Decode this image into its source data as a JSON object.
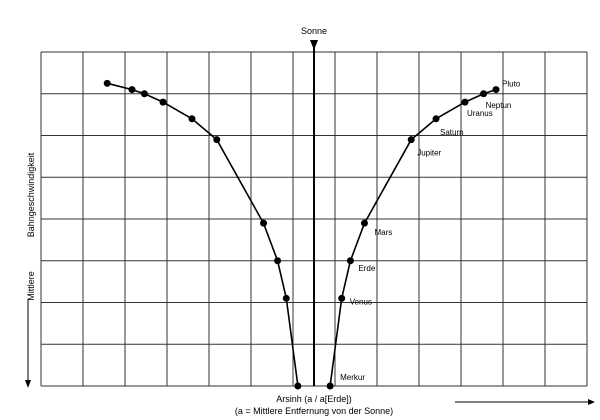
{
  "chart_data": {
    "type": "scatter",
    "title": "",
    "xlabel_line1": "Arsinh (a / a[Erde])",
    "xlabel_line2": "(a = Mittlere Entfernung von der Sonne)",
    "ylabel_part1": "Mittlere",
    "ylabel_part2": "Bahngeschwindigkeit",
    "sun_label": "Sonne",
    "grid": true,
    "symmetric_about_sun": true,
    "xlim": [
      -6.6,
      6.6
    ],
    "ylim": [
      0,
      8
    ],
    "series": [
      {
        "points": [
          {
            "label": "Merkur",
            "x": 0.39,
            "y": 0.0
          },
          {
            "label": "Venus",
            "x": 0.67,
            "y": 2.1
          },
          {
            "label": "Erde",
            "x": 0.88,
            "y": 3.0
          },
          {
            "label": "Mars",
            "x": 1.22,
            "y": 3.9
          },
          {
            "label": "Jupiter",
            "x": 2.35,
            "y": 5.9
          },
          {
            "label": "Saturn",
            "x": 2.95,
            "y": 6.4
          },
          {
            "label": "Uranus",
            "x": 3.65,
            "y": 6.8
          },
          {
            "label": "Neptun",
            "x": 4.1,
            "y": 7.0
          },
          {
            "label": "Pluto",
            "x": 4.4,
            "y": 7.1
          }
        ]
      }
    ]
  }
}
